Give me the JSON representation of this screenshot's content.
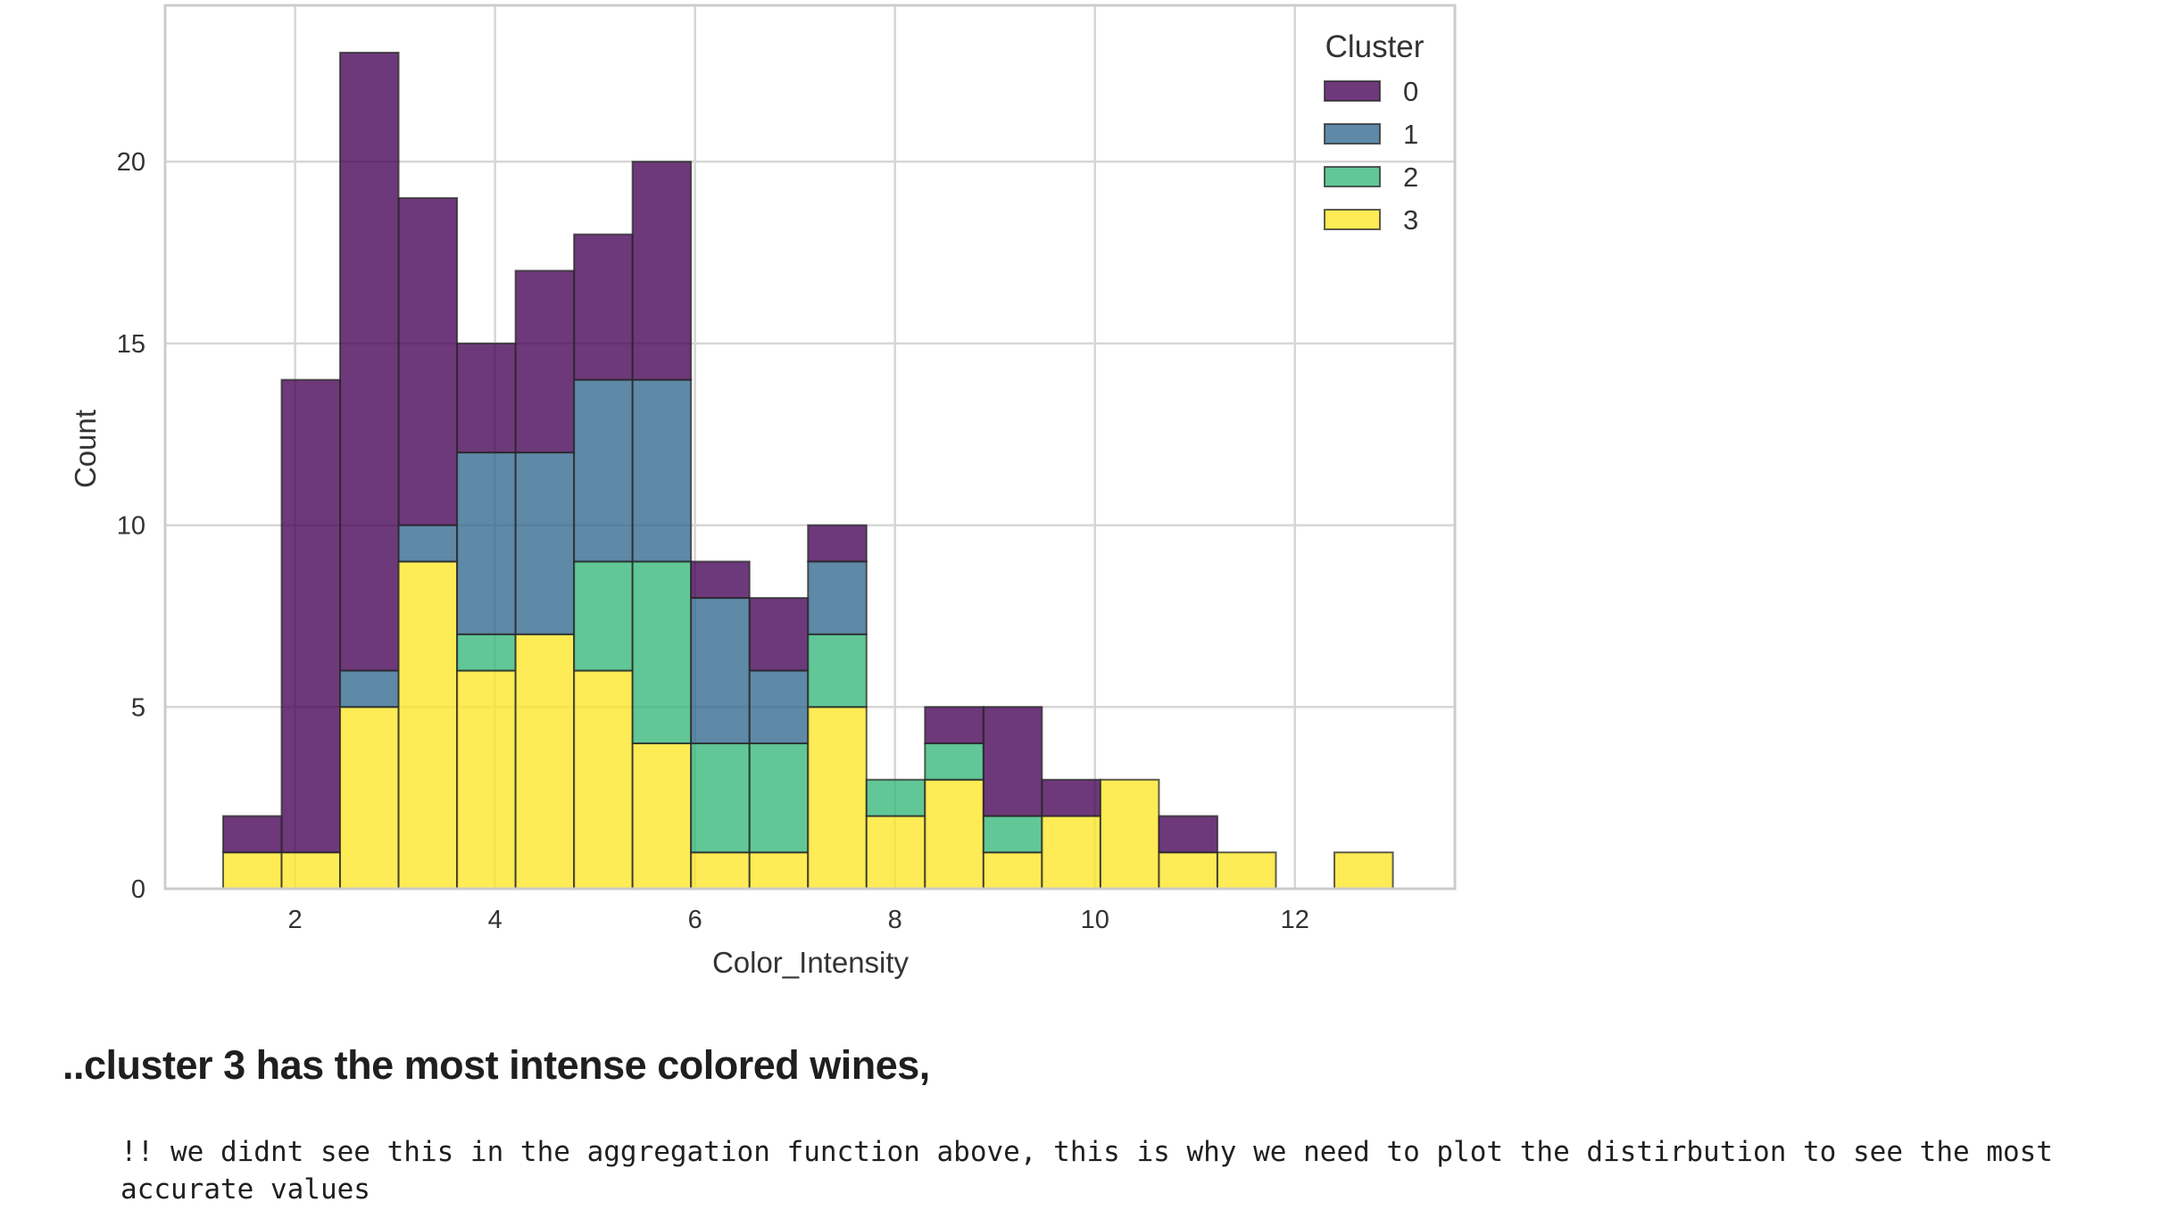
{
  "chart_data": {
    "type": "bar",
    "stacked": true,
    "xlabel": "Color_Intensity",
    "ylabel": "Count",
    "xlim": [
      0.7,
      13.6
    ],
    "ylim": [
      0,
      24.3
    ],
    "xticks": [
      2,
      4,
      6,
      8,
      10,
      12
    ],
    "yticks": [
      0,
      5,
      10,
      15,
      20
    ],
    "grid": true,
    "legend": {
      "title": "Cluster",
      "placement": "top-right"
    },
    "bin_edges": [
      1.28,
      1.865,
      2.45,
      3.035,
      3.62,
      4.205,
      4.79,
      5.375,
      5.96,
      6.545,
      7.13,
      7.715,
      8.3,
      8.885,
      9.47,
      10.055,
      10.64,
      11.225,
      11.81,
      12.395,
      12.98
    ],
    "series": [
      {
        "name": "3",
        "color": "#fde725",
        "values": [
          1,
          1,
          5,
          9,
          6,
          7,
          6,
          4,
          1,
          1,
          5,
          2,
          3,
          1,
          2,
          3,
          1,
          1,
          0,
          1
        ]
      },
      {
        "name": "2",
        "color": "#35b779",
        "values": [
          0,
          0,
          0,
          0,
          1,
          0,
          3,
          5,
          3,
          3,
          2,
          1,
          1,
          1,
          0,
          0,
          0,
          0,
          0,
          0
        ]
      },
      {
        "name": "1",
        "color": "#31688e",
        "values": [
          0,
          0,
          1,
          1,
          5,
          5,
          5,
          5,
          4,
          2,
          2,
          0,
          0,
          0,
          0,
          0,
          0,
          0,
          0,
          0
        ]
      },
      {
        "name": "0",
        "color": "#440154",
        "values": [
          1,
          13,
          17,
          9,
          3,
          5,
          4,
          6,
          1,
          2,
          1,
          0,
          1,
          3,
          1,
          0,
          1,
          0,
          0,
          0
        ]
      }
    ]
  },
  "text": {
    "heading": "..cluster 3 has the most intense colored wines,",
    "note": "!! we didnt see this in the aggregation function above, this is why we need to plot the distirbution to see the most accurate values"
  }
}
